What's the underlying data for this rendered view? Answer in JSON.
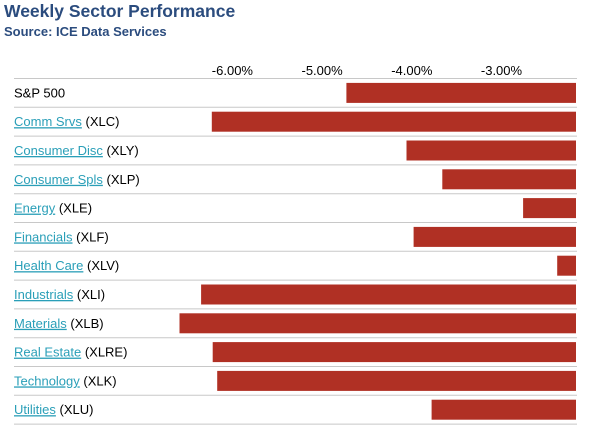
{
  "header": {
    "title": "Weekly Sector Performance",
    "subtitle": "Source: ICE Data Services"
  },
  "colors": {
    "bar": "#b03024",
    "title": "#2b4c7e",
    "link": "#2a9fb8",
    "divider": "#c8c8c8"
  },
  "chart_data": {
    "type": "bar",
    "orientation": "horizontal",
    "title": "Weekly Sector Performance",
    "subtitle": "Source: ICE Data Services",
    "x_ticks": [
      "-6.00%",
      "-5.00%",
      "-4.00%",
      "-3.00%"
    ],
    "x_tick_values": [
      -6.0,
      -5.0,
      -4.0,
      -3.0
    ],
    "xlim": [
      -6.45,
      -2.17
    ],
    "categories": [
      {
        "name": "S&P 500",
        "ticker": "",
        "link": false
      },
      {
        "name": "Comm Srvs",
        "ticker": "(XLC)",
        "link": true
      },
      {
        "name": "Consumer Disc",
        "ticker": "(XLY)",
        "link": true
      },
      {
        "name": "Consumer Spls",
        "ticker": "(XLP)",
        "link": true
      },
      {
        "name": "Energy",
        "ticker": "(XLE)",
        "link": true
      },
      {
        "name": "Financials",
        "ticker": "(XLF)",
        "link": true
      },
      {
        "name": "Health Care",
        "ticker": "(XLV)",
        "link": true
      },
      {
        "name": "Industrials",
        "ticker": "(XLI)",
        "link": true
      },
      {
        "name": "Materials",
        "ticker": "(XLB)",
        "link": true
      },
      {
        "name": "Real Estate",
        "ticker": "(XLRE)",
        "link": true
      },
      {
        "name": "Technology",
        "ticker": "(XLK)",
        "link": true
      },
      {
        "name": "Utilities",
        "ticker": "(XLU)",
        "link": true
      }
    ],
    "values": [
      -4.73,
      -6.23,
      -4.06,
      -3.66,
      -2.76,
      -3.98,
      -2.38,
      -6.35,
      -6.59,
      -6.22,
      -6.17,
      -3.78
    ],
    "grid": false,
    "legend": "none"
  }
}
